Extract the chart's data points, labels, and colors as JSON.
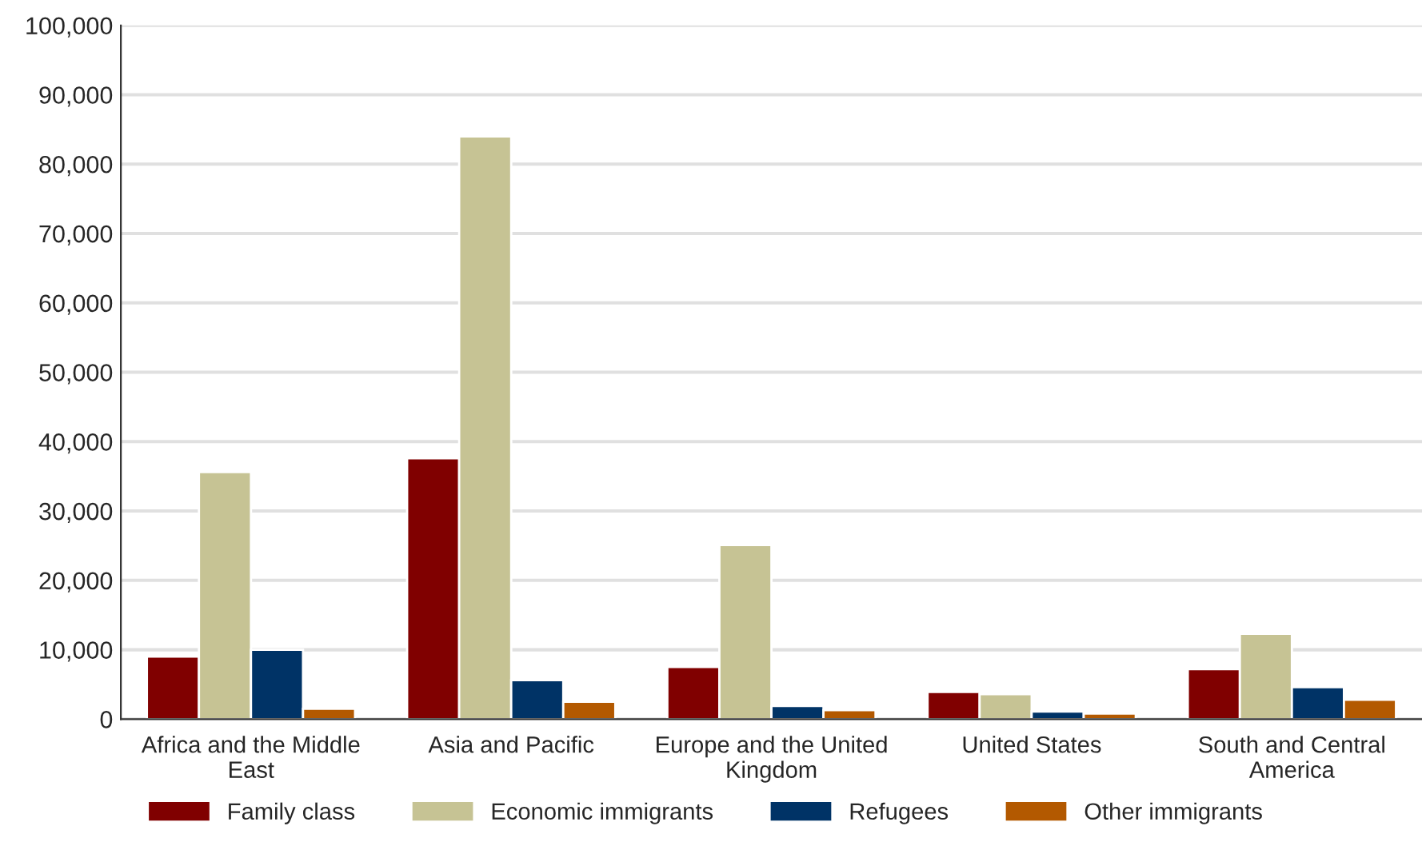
{
  "chart_data": {
    "type": "bar",
    "categories": [
      "Africa and the Middle East",
      "Asia and Pacific",
      "Europe and the United Kingdom",
      "United States",
      "South and Central America"
    ],
    "series": [
      {
        "name": "Family class",
        "color": "#800000",
        "values": [
          9000,
          37600,
          7500,
          3900,
          7200
        ]
      },
      {
        "name": "Economic immigrants",
        "color": "#c6c394",
        "values": [
          35600,
          84000,
          25100,
          3600,
          12300
        ]
      },
      {
        "name": "Refugees",
        "color": "#003366",
        "values": [
          10000,
          5600,
          1900,
          1100,
          4600
        ]
      },
      {
        "name": "Other immigrants",
        "color": "#b35900",
        "values": [
          1500,
          2500,
          1300,
          800,
          2800
        ]
      }
    ],
    "ylim": [
      0,
      100000
    ],
    "yticks": [
      {
        "value": 0,
        "label": "0"
      },
      {
        "value": 10000,
        "label": "10,000"
      },
      {
        "value": 20000,
        "label": "20,000"
      },
      {
        "value": 30000,
        "label": "30,000"
      },
      {
        "value": 40000,
        "label": "40,000"
      },
      {
        "value": 50000,
        "label": "50,000"
      },
      {
        "value": 60000,
        "label": "60,000"
      },
      {
        "value": 70000,
        "label": "70,000"
      },
      {
        "value": 80000,
        "label": "80,000"
      },
      {
        "value": 90000,
        "label": "90,000"
      },
      {
        "value": 100000,
        "label": "100,000"
      }
    ],
    "grid": "y",
    "legend": "bottom"
  }
}
